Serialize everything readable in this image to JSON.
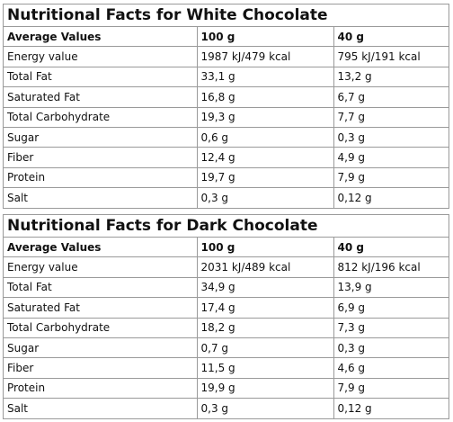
{
  "tables": [
    {
      "title": "Nutritional Facts for White Chocolate",
      "headers": [
        "Average Values",
        "100 g",
        "40 g"
      ],
      "rows": [
        [
          "Energy value",
          "1987 kJ/479 kcal",
          "795 kJ/191 kcal"
        ],
        [
          "Total Fat",
          "33,1 g",
          "13,2 g"
        ],
        [
          "Saturated Fat",
          "16,8 g",
          "6,7 g"
        ],
        [
          "Total Carbohydrate",
          "19,3 g",
          "7,7 g"
        ],
        [
          "Sugar",
          "0,6 g",
          "0,3 g"
        ],
        [
          "Fiber",
          "12,4 g",
          "4,9 g"
        ],
        [
          "Protein",
          "19,7 g",
          "7,9 g"
        ],
        [
          "Salt",
          "0,3 g",
          "0,12 g"
        ]
      ]
    },
    {
      "title": "Nutritional Facts for Dark Chocolate",
      "headers": [
        "Average Values",
        "100 g",
        "40 g"
      ],
      "rows": [
        [
          "Energy value",
          "2031 kJ/489 kcal",
          "812 kJ/196 kcal"
        ],
        [
          "Total Fat",
          "34,9 g",
          "13,9 g"
        ],
        [
          "Saturated Fat",
          "17,4 g",
          "6,9 g"
        ],
        [
          "Total Carbohydrate",
          "18,2 g",
          "7,3 g"
        ],
        [
          "Sugar",
          "0,7 g",
          "0,3 g"
        ],
        [
          "Fiber",
          "11,5 g",
          "4,6 g"
        ],
        [
          "Protein",
          "19,9 g",
          "7,9 g"
        ],
        [
          "Salt",
          "0,3 g",
          "0,12 g"
        ]
      ]
    }
  ]
}
